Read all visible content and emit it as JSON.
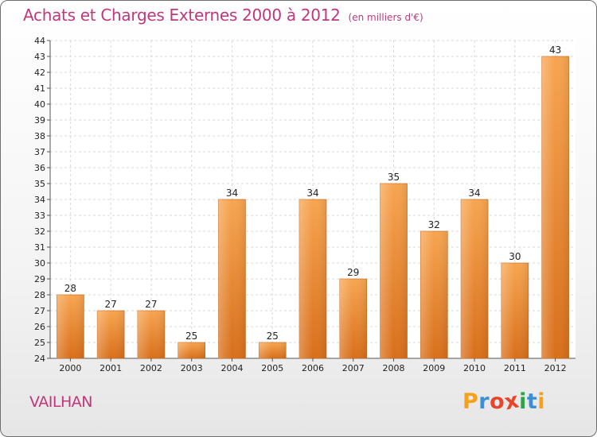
{
  "chart_data": {
    "type": "bar",
    "title": "Achats et Charges Externes 2000 à 2012",
    "subtitle": "(en milliers d'€)",
    "categories": [
      "2000",
      "2001",
      "2002",
      "2003",
      "2004",
      "2005",
      "2006",
      "2007",
      "2008",
      "2009",
      "2010",
      "2011",
      "2012"
    ],
    "values": [
      28,
      27,
      27,
      25,
      34,
      25,
      34,
      29,
      35,
      32,
      34,
      30,
      43
    ],
    "ylim": [
      24,
      44
    ],
    "yticks": [
      24,
      25,
      26,
      27,
      28,
      29,
      30,
      31,
      32,
      33,
      34,
      35,
      36,
      37,
      38,
      39,
      40,
      41,
      42,
      43,
      44
    ],
    "grid": true,
    "bar_color": "#f39a3f"
  },
  "location": "VAILHAN",
  "logo": {
    "letters": [
      "P",
      "r",
      "o",
      "x",
      "i",
      "t",
      "i"
    ],
    "colors": [
      "#f4a21c",
      "#3a8fd6",
      "#e8452c",
      "#e8452c",
      "#2ca24a",
      "#3a8fd6",
      "#f4a21c"
    ]
  }
}
